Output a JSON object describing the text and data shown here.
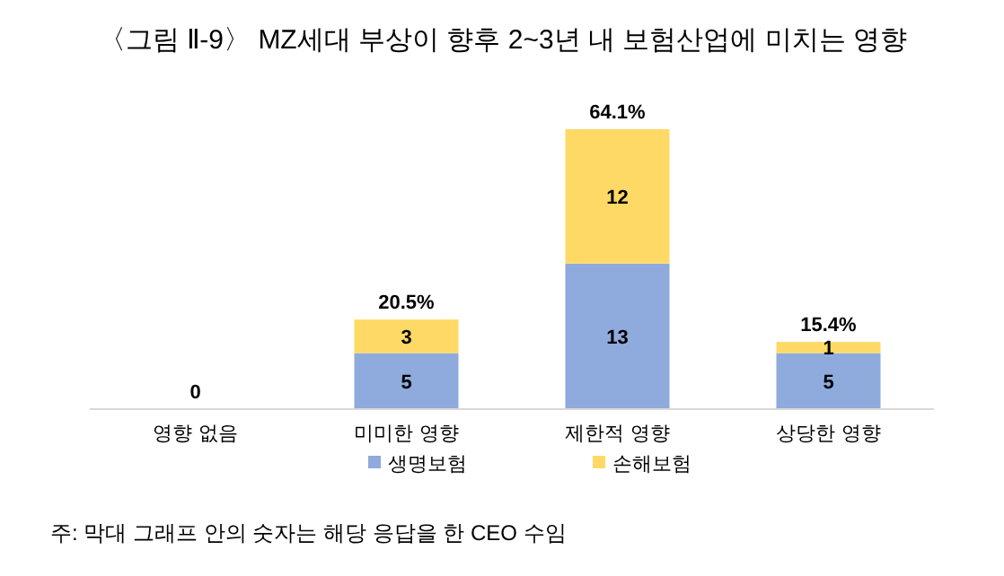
{
  "chart_data": {
    "type": "bar",
    "stacked": true,
    "title": "〈그림 Ⅱ-9〉 MZ세대 부상이 향후 2~3년 내 보험산업에 미치는 영향",
    "categories": [
      "영향 없음",
      "미미한 영향",
      "제한적 영향",
      "상당한 영향"
    ],
    "series": [
      {
        "name": "생명보험",
        "color": "#8faadc",
        "values": [
          0,
          5,
          13,
          5
        ],
        "value_labels": [
          null,
          "5",
          "13",
          "5"
        ]
      },
      {
        "name": "손해보험",
        "color": "#ffd966",
        "values": [
          0,
          3,
          12,
          1
        ],
        "value_labels": [
          null,
          "3",
          "12",
          "1"
        ]
      }
    ],
    "legend": "bottom",
    "annotations": [
      {
        "text": "0",
        "x": "영향 없음",
        "y": 0
      },
      {
        "text": "20.5%",
        "x": "미미한 영향",
        "y": 8
      },
      {
        "text": "64.1%",
        "x": "제한적 영향",
        "y": 25
      },
      {
        "text": "15.4%",
        "x": "상당한 영향",
        "y": 6
      },
      "주: 막대 그래프 안의 숫자는 해당 응답을 한 CEO 수임"
    ]
  }
}
